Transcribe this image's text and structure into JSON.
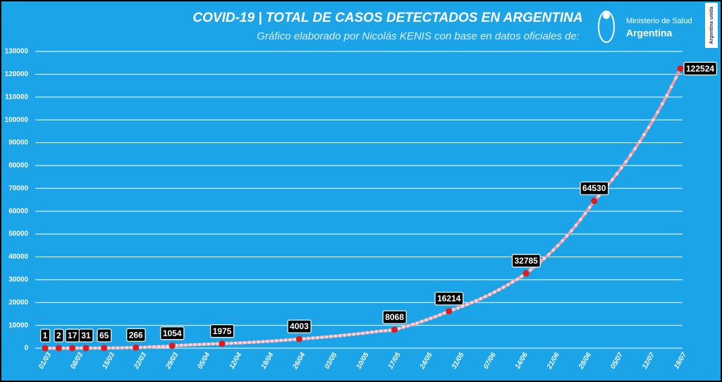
{
  "chart_data": {
    "type": "line",
    "title": "COVID-19  |  TOTAL DE CASOS DETECTADOS EN ARGENTINA",
    "subtitle": "Gráfico elaborado por Nicolás KENIS con base en datos oficiales de:",
    "categories": [
      "01/03",
      null,
      null,
      null,
      null,
      null,
      null,
      "08/03",
      null,
      null,
      null,
      null,
      null,
      null,
      "15/03",
      null,
      null,
      null,
      null,
      null,
      null,
      "22/03",
      null,
      null,
      null,
      null,
      null,
      null,
      "29/03",
      null,
      null,
      null,
      null,
      null,
      null,
      "05/04",
      null,
      null,
      null,
      null,
      null,
      null,
      "12/04",
      null,
      null,
      null,
      null,
      null,
      null,
      "19/04",
      null,
      null,
      null,
      null,
      null,
      null,
      "26/04",
      null,
      null,
      null,
      null,
      null,
      null,
      "03/05",
      null,
      null,
      null,
      null,
      null,
      null,
      "10/05",
      null,
      null,
      null,
      null,
      null,
      null,
      "17/05",
      null,
      null,
      null,
      null,
      null,
      null,
      "24/05",
      null,
      null,
      null,
      null,
      null,
      null,
      "31/05",
      null,
      null,
      null,
      null,
      null,
      null,
      "07/06",
      null,
      null,
      null,
      null,
      null,
      null,
      "14/06",
      null,
      null,
      null,
      null,
      null,
      null,
      "21/06",
      null,
      null,
      null,
      null,
      null,
      null,
      "28/06",
      null,
      null,
      null,
      null,
      null,
      null,
      "05/07",
      null,
      null,
      null,
      null,
      null,
      null,
      "12/07",
      null,
      null,
      null,
      null,
      null,
      null,
      "19/07"
    ],
    "series": [
      {
        "color": "#f29ca3",
        "values": [
          1,
          1,
          1,
          2,
          2,
          9,
          17,
          19,
          21,
          31,
          34,
          45,
          56,
          65,
          79,
          97,
          128,
          158,
          225,
          250,
          266,
          301,
          387,
          502,
          589,
          690,
          745,
          820,
          1054,
          1133,
          1265,
          1353,
          1451,
          1554,
          1628,
          1715,
          1795,
          1894,
          1930,
          1975,
          2059,
          2146,
          2237,
          2332,
          2431,
          2534,
          2642,
          2754,
          2871,
          2993,
          3120,
          3252,
          3390,
          3534,
          3684,
          3840,
          4003,
          4146,
          4294,
          4447,
          4606,
          4770,
          4940,
          5116,
          5299,
          5488,
          5684,
          5887,
          6097,
          6315,
          6540,
          6774,
          7016,
          7266,
          7525,
          7650,
          7850,
          8068,
          8600,
          9200,
          9800,
          10400,
          11000,
          11700,
          12400,
          13100,
          13800,
          14600,
          15400,
          16214,
          16900,
          17615,
          18360,
          19137,
          19946,
          20790,
          21669,
          22586,
          23541,
          24537,
          25575,
          26657,
          27784,
          28960,
          30185,
          31462,
          32785,
          34299,
          35884,
          37542,
          39276,
          41091,
          42989,
          44975,
          47053,
          49227,
          51501,
          53880,
          56369,
          58973,
          61697,
          64530,
          66743,
          69032,
          71400,
          73849,
          76382,
          79002,
          81712,
          84515,
          87414,
          90412,
          93513,
          96720,
          100038,
          103469,
          107018,
          110689,
          114486,
          118413,
          122524
        ]
      },
      {
        "color": "#e0191d",
        "values": [
          1,
          null,
          null,
          2,
          null,
          null,
          17,
          null,
          null,
          31,
          null,
          null,
          null,
          65,
          null,
          null,
          null,
          null,
          null,
          null,
          266,
          null,
          null,
          null,
          null,
          null,
          null,
          null,
          1054,
          null,
          null,
          null,
          null,
          null,
          null,
          null,
          null,
          null,
          null,
          1975,
          null,
          null,
          null,
          null,
          null,
          null,
          null,
          null,
          null,
          null,
          null,
          null,
          null,
          null,
          null,
          null,
          4003,
          null,
          null,
          null,
          null,
          null,
          null,
          null,
          null,
          null,
          null,
          null,
          null,
          null,
          null,
          null,
          null,
          null,
          null,
          null,
          null,
          8068,
          null,
          null,
          null,
          null,
          null,
          null,
          null,
          null,
          null,
          null,
          null,
          16214,
          null,
          null,
          null,
          null,
          null,
          null,
          null,
          null,
          null,
          null,
          null,
          null,
          null,
          null,
          null,
          null,
          32785,
          null,
          null,
          null,
          null,
          null,
          null,
          null,
          null,
          null,
          null,
          null,
          null,
          null,
          null,
          64530,
          null,
          null,
          null,
          null,
          null,
          null,
          null,
          null,
          null,
          null,
          null,
          null,
          null,
          null,
          null,
          null,
          null,
          null,
          122524
        ]
      }
    ],
    "ylim": [
      0,
      130000
    ],
    "yticks": [
      0,
      10000,
      20000,
      30000,
      40000,
      50000,
      60000,
      70000,
      80000,
      90000,
      100000,
      110000,
      120000,
      130000
    ],
    "grid": true
  },
  "logo": {
    "ministry": "Ministerio de Salud",
    "country": "Argentina",
    "badge": "Argentina unida"
  }
}
